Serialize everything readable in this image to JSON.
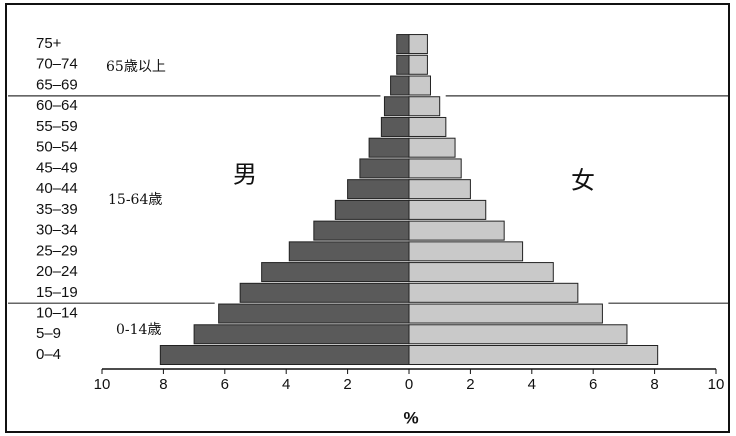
{
  "chart_data": {
    "type": "pyramid",
    "categories": [
      "0–4",
      "5–9",
      "10–14",
      "15–19",
      "20–24",
      "25–29",
      "30–34",
      "35–39",
      "40–44",
      "45–49",
      "50–54",
      "55–59",
      "60–64",
      "65–69",
      "70–74",
      "75+"
    ],
    "series": [
      {
        "name": "男",
        "color": "#5a5a5a",
        "values": [
          8.1,
          7.0,
          6.2,
          5.5,
          4.8,
          3.9,
          3.1,
          2.4,
          2.0,
          1.6,
          1.3,
          0.9,
          0.8,
          0.6,
          0.4,
          0.4
        ]
      },
      {
        "name": "女",
        "color": "#c9c9c9",
        "values": [
          8.1,
          7.1,
          6.3,
          5.5,
          4.7,
          3.7,
          3.1,
          2.5,
          2.0,
          1.7,
          1.5,
          1.2,
          1.0,
          0.7,
          0.6,
          0.6
        ]
      }
    ],
    "xlim": [
      -10,
      10
    ],
    "xticks": [
      {
        "value": -10,
        "label": "10"
      },
      {
        "value": -8,
        "label": "8"
      },
      {
        "value": -6,
        "label": "6"
      },
      {
        "value": -4,
        "label": "4"
      },
      {
        "value": -2,
        "label": "2"
      },
      0,
      2,
      4,
      6,
      8,
      10
    ],
    "xlabel": "%",
    "annotations": [
      "65歳以上",
      "15-64歳",
      "0-14歳"
    ]
  }
}
